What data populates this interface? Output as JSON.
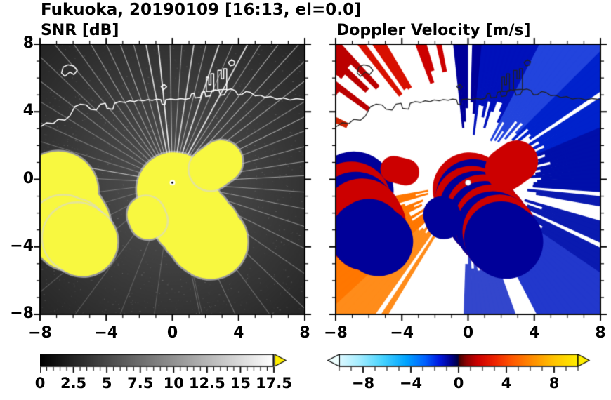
{
  "title": "Fukuoka, 20190109 [16:13, el=0.0]",
  "panels": {
    "snr": {
      "title": "SNR [dB]"
    },
    "doppler": {
      "title": "Doppler Velocity [m/s]"
    }
  },
  "axes": {
    "xlim": [
      -8,
      8
    ],
    "ylim": [
      -8,
      8
    ],
    "major_tick_step": 4,
    "minor_tick_step": 1,
    "xtick_values": [
      -8,
      -4,
      0,
      4,
      8
    ],
    "xtick_labels": [
      "−8",
      "−4",
      "0",
      "4",
      "8"
    ],
    "ytick_values": [
      8,
      4,
      0,
      -4,
      -8
    ],
    "ytick_labels": [
      "8",
      "4",
      "0",
      "−4",
      "−8"
    ]
  },
  "colorbars": {
    "snr": {
      "min": 0,
      "max": 17.5,
      "minor_step": 0.5,
      "tick_values": [
        0,
        2.5,
        5,
        7.5,
        10,
        12.5,
        15,
        17.5
      ],
      "tick_labels": [
        "0",
        "2.5",
        "5",
        "7.5",
        "10",
        "12.5",
        "15",
        "17.5"
      ],
      "gradient": [
        [
          0,
          "#000000"
        ],
        [
          1,
          "#ffffff"
        ]
      ],
      "over_arrow_color": "#ffee00"
    },
    "doppler": {
      "min": -10,
      "max": 10,
      "minor_step": 1,
      "tick_values": [
        -8,
        -4,
        0,
        4,
        8
      ],
      "tick_labels": [
        "−8",
        "−4",
        "0",
        "4",
        "8"
      ],
      "gradient": [
        [
          0,
          "#dcf8ff"
        ],
        [
          0.08,
          "#a8eeff"
        ],
        [
          0.18,
          "#48d4ff"
        ],
        [
          0.28,
          "#00a4ff"
        ],
        [
          0.36,
          "#0060ff"
        ],
        [
          0.42,
          "#0018e0"
        ],
        [
          0.47,
          "#000088"
        ],
        [
          0.497,
          "#000044"
        ],
        [
          0.503,
          "#440000"
        ],
        [
          0.53,
          "#880000"
        ],
        [
          0.58,
          "#cc0000"
        ],
        [
          0.65,
          "#ee2200"
        ],
        [
          0.72,
          "#ff5500"
        ],
        [
          0.8,
          "#ff8800"
        ],
        [
          0.9,
          "#ffc400"
        ],
        [
          1,
          "#ffee00"
        ]
      ],
      "under_arrow_color": "#eeffff",
      "over_arrow_color": "#ffee00"
    }
  },
  "chart_data": {
    "type": "heatmap",
    "subtype": "dual-panel radar PPI (SNR + Doppler velocity)",
    "title": "Fukuoka, 20190109 [16:13, el=0.0]",
    "x_range": [
      -8,
      8
    ],
    "y_range": [
      -8,
      8
    ],
    "radar_center": [
      0,
      -0.2
    ],
    "coastline": {
      "main": [
        [
          -8.0,
          3.1
        ],
        [
          -7.6,
          3.35
        ],
        [
          -7.2,
          3.3
        ],
        [
          -6.9,
          3.55
        ],
        [
          -6.5,
          3.5
        ],
        [
          -6.2,
          3.75
        ],
        [
          -5.9,
          4.3
        ],
        [
          -5.55,
          4.45
        ],
        [
          -5.2,
          4.4
        ],
        [
          -4.95,
          4.15
        ],
        [
          -4.6,
          4.1
        ],
        [
          -4.35,
          4.45
        ],
        [
          -4.05,
          4.5
        ],
        [
          -3.95,
          4.2
        ],
        [
          -3.6,
          4.15
        ],
        [
          -3.5,
          4.5
        ],
        [
          -3.2,
          4.6
        ],
        [
          -2.85,
          4.55
        ],
        [
          -2.6,
          4.65
        ],
        [
          -2.3,
          4.6
        ],
        [
          -2.05,
          4.7
        ],
        [
          -1.75,
          4.65
        ],
        [
          -1.5,
          4.72
        ],
        [
          -1.2,
          4.68
        ],
        [
          -0.95,
          4.75
        ],
        [
          -0.7,
          4.72
        ],
        [
          -0.62,
          4.45
        ],
        [
          -0.45,
          4.42
        ],
        [
          -0.4,
          4.72
        ],
        [
          -0.1,
          4.76
        ],
        [
          0.2,
          4.72
        ],
        [
          0.5,
          4.78
        ],
        [
          0.8,
          4.74
        ],
        [
          1.05,
          4.8
        ],
        [
          1.15,
          5.05
        ],
        [
          1.3,
          5.1
        ],
        [
          1.38,
          4.82
        ],
        [
          1.7,
          4.86
        ],
        [
          1.78,
          5.15
        ],
        [
          1.95,
          5.2
        ],
        [
          2.02,
          4.9
        ],
        [
          2.3,
          4.95
        ],
        [
          2.38,
          5.25
        ],
        [
          2.6,
          5.3
        ],
        [
          2.82,
          5.25
        ],
        [
          2.9,
          4.98
        ],
        [
          3.15,
          5.02
        ],
        [
          3.3,
          5.3
        ],
        [
          3.55,
          5.35
        ],
        [
          3.8,
          5.25
        ],
        [
          3.95,
          5.0
        ],
        [
          4.2,
          5.02
        ],
        [
          4.45,
          5.2
        ],
        [
          4.7,
          5.15
        ],
        [
          5.0,
          4.95
        ],
        [
          5.3,
          4.98
        ],
        [
          5.6,
          4.85
        ],
        [
          5.95,
          4.9
        ],
        [
          6.3,
          4.75
        ],
        [
          6.7,
          4.82
        ],
        [
          7.1,
          4.7
        ],
        [
          7.5,
          4.78
        ],
        [
          8.0,
          4.72
        ]
      ],
      "closed": [
        [
          [
            -6.5,
            6.1
          ],
          [
            -6.7,
            6.3
          ],
          [
            -6.6,
            6.65
          ],
          [
            -6.3,
            6.78
          ],
          [
            -5.95,
            6.7
          ],
          [
            -5.75,
            6.45
          ],
          [
            -5.95,
            6.2
          ],
          [
            -6.2,
            6.35
          ]
        ],
        [
          [
            2.05,
            5.2
          ],
          [
            2.05,
            6.05
          ],
          [
            2.2,
            6.05
          ],
          [
            2.2,
            5.6
          ],
          [
            2.33,
            5.6
          ],
          [
            2.33,
            6.25
          ],
          [
            2.5,
            6.25
          ],
          [
            2.5,
            5.22
          ]
        ],
        [
          [
            2.75,
            5.3
          ],
          [
            2.75,
            6.45
          ],
          [
            2.95,
            6.45
          ],
          [
            2.95,
            5.95
          ],
          [
            3.1,
            5.95
          ],
          [
            3.1,
            6.55
          ],
          [
            3.28,
            6.55
          ],
          [
            3.28,
            5.33
          ]
        ],
        [
          [
            -0.55,
            5.3
          ],
          [
            -0.68,
            5.5
          ],
          [
            -0.5,
            5.62
          ],
          [
            -0.35,
            5.48
          ]
        ],
        [
          [
            3.5,
            6.72
          ],
          [
            3.38,
            6.92
          ],
          [
            3.58,
            7.08
          ],
          [
            3.78,
            6.96
          ],
          [
            3.7,
            6.76
          ]
        ]
      ]
    },
    "snr": {
      "background": "#000000",
      "coast_color": "#ffffff",
      "echo_color": "#f8f840",
      "halo_radius": 1.3,
      "noise": {
        "count": 1500,
        "max_alpha": 0.22
      },
      "rays": [
        [
          96,
          3.3,
          0.9
        ],
        [
          91,
          2.6,
          0.6
        ],
        [
          86,
          3.8,
          0.5
        ],
        [
          81,
          2.2,
          0.75
        ],
        [
          76,
          3.0,
          0.55
        ],
        [
          71,
          2.4,
          0.8
        ],
        [
          66,
          3.9,
          0.45
        ],
        [
          61,
          1.8,
          0.85
        ],
        [
          57,
          2.7,
          0.5
        ],
        [
          52,
          2.1,
          0.6
        ],
        [
          47,
          3.2,
          0.6
        ],
        [
          42,
          1.6,
          0.5
        ],
        [
          37,
          2.4,
          0.55
        ],
        [
          31,
          2.9,
          0.45
        ],
        [
          26,
          1.9,
          0.55
        ],
        [
          21,
          2.6,
          0.4
        ],
        [
          15,
          3.3,
          0.5
        ],
        [
          9,
          2.1,
          0.45
        ],
        [
          3,
          2.8,
          0.5
        ],
        [
          -4,
          1.9,
          0.4
        ],
        [
          -11,
          2.4,
          0.45
        ],
        [
          -18,
          1.7,
          0.4
        ],
        [
          -26,
          2.1,
          0.4
        ],
        [
          -34,
          1.5,
          0.35
        ],
        [
          -43,
          1.9,
          0.35
        ],
        [
          -53,
          1.4,
          0.3
        ],
        [
          -64,
          1.1,
          0.3
        ],
        [
          -78,
          0.9,
          0.25
        ],
        [
          101,
          2.7,
          0.8
        ],
        [
          106,
          3.1,
          0.55
        ],
        [
          111,
          2.3,
          0.6
        ],
        [
          116,
          2.9,
          0.5
        ],
        [
          121,
          1.8,
          0.5
        ],
        [
          126,
          2.5,
          0.45
        ],
        [
          131,
          1.6,
          0.45
        ],
        [
          137,
          2.2,
          0.4
        ],
        [
          143,
          1.5,
          0.4
        ],
        [
          149,
          1.9,
          0.35
        ],
        [
          156,
          1.3,
          0.35
        ],
        [
          163,
          1.7,
          0.3
        ],
        [
          170,
          4.6,
          0.6
        ],
        [
          177,
          1.2,
          0.3
        ],
        [
          187,
          1.5,
          0.28
        ],
        [
          196,
          1.0,
          0.25
        ],
        [
          207,
          1.3,
          0.25
        ],
        [
          219,
          0.9,
          0.22
        ],
        [
          233,
          1.1,
          0.22
        ],
        [
          248,
          0.8,
          0.2
        ],
        [
          262,
          1.0,
          0.2
        ],
        [
          283,
          0.8,
          0.2
        ]
      ]
    },
    "doppler": {
      "background": "#ffffff",
      "coast_color": "#222222",
      "chain_colors": [
        "#cc0000",
        "#000099"
      ],
      "fans": [
        {
          "a0": 84,
          "a1": 96,
          "r0": 0.25,
          "r1": 3.2,
          "color": "#000099"
        },
        {
          "a0": 62,
          "a1": 84,
          "r0": 0.25,
          "r1": 2.8,
          "color": "#0011bb"
        },
        {
          "a0": 44,
          "a1": 62,
          "r0": 0.25,
          "r1": 2.1,
          "color": "#2244dd"
        },
        {
          "a0": 22,
          "a1": 44,
          "r0": 0.25,
          "r1": 1.7,
          "color": "#0022cc"
        },
        {
          "a0": -6,
          "a1": 22,
          "r0": 0.25,
          "r1": 2.3,
          "color": "#000faa"
        },
        {
          "a0": -34,
          "a1": -6,
          "r0": 0.25,
          "r1": 1.9,
          "color": "#0a1ab0"
        },
        {
          "a0": -62,
          "a1": -34,
          "r0": 0.25,
          "r1": 1.4,
          "color": "#2238cc"
        },
        {
          "a0": -92,
          "a1": -70,
          "r0": 0.3,
          "r1": 1.1,
          "color": "#3346cc"
        },
        {
          "a0": 70,
          "a1": 78,
          "r0": 2.0,
          "r1": 2.6,
          "color": "#cc0000"
        },
        {
          "a0": 97,
          "a1": 110,
          "r0": 0.5,
          "r1": 2.2,
          "color": "#cc0000"
        },
        {
          "a0": 113,
          "a1": 129,
          "r0": 0.55,
          "r1": 1.8,
          "color": "#d81000"
        },
        {
          "a0": 133,
          "a1": 148,
          "r0": 0.5,
          "r1": 1.3,
          "color": "#bb0000"
        },
        {
          "a0": 152,
          "a1": 160,
          "r0": 0.6,
          "r1": 1.0,
          "color": "#cc2200"
        },
        {
          "a0": 190,
          "a1": 222,
          "r0": 0.2,
          "r1": 2.35,
          "color": "#ff7700"
        },
        {
          "a0": 222,
          "a1": 238,
          "r0": 0.2,
          "r1": 1.5,
          "color": "#ff8c1a"
        }
      ],
      "extra_chains": [
        {
          "points": [
            [
              -4.5,
              0.6
            ],
            [
              -3.75,
              0.42
            ]
          ],
          "width": 0.1
        }
      ]
    },
    "echo_chains": [
      {
        "points": [
          [
            0.1,
            -0.6
          ],
          [
            0.3,
            -1.0
          ],
          [
            0.2,
            -1.4
          ],
          [
            0.5,
            -1.7
          ],
          [
            0.9,
            -1.9
          ],
          [
            1.0,
            -2.3
          ],
          [
            1.4,
            -2.5
          ],
          [
            1.5,
            -2.9
          ],
          [
            1.9,
            -3.1
          ],
          [
            2.0,
            -3.5
          ],
          [
            2.3,
            -3.7
          ]
        ],
        "width": 0.28
      },
      {
        "points": [
          [
            -6.9,
            -0.7
          ],
          [
            -7.05,
            -1.3
          ],
          [
            -6.8,
            -1.9
          ],
          [
            -6.4,
            -2.3
          ],
          [
            -6.15,
            -2.7
          ]
        ],
        "width": 0.3
      },
      {
        "points": [
          [
            -6.6,
            -3.0
          ],
          [
            -6.25,
            -3.35
          ],
          [
            -6.0,
            -3.2
          ]
        ],
        "width": 0.26
      },
      {
        "points": [
          [
            -5.75,
            -3.45
          ],
          [
            -5.4,
            -3.7
          ]
        ],
        "width": 0.26
      },
      {
        "points": [
          [
            2.3,
            0.6
          ],
          [
            2.95,
            1.05
          ]
        ],
        "width": 0.16
      },
      {
        "points": [
          [
            -1.6,
            -2.1
          ],
          [
            -1.45,
            -2.45
          ]
        ],
        "width": 0.14
      }
    ]
  }
}
